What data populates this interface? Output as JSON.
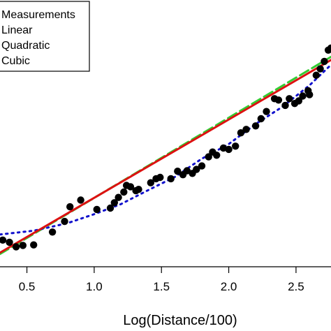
{
  "chart_data": {
    "type": "scatter",
    "title": "",
    "xlabel": "Log(Distance/100)",
    "ylabel": "",
    "x_ticks": [
      0.5,
      1.0,
      1.5,
      2.0,
      2.5
    ],
    "x_tick_labels": [
      "0.5",
      "1.0",
      "1.5",
      "2.0",
      "2.5"
    ],
    "xlim": [
      0.3,
      2.76
    ],
    "ylim": [
      0.0,
      1.0
    ],
    "grid": false,
    "legend_position": "top-left",
    "legend": [
      "Measurements",
      "Linear",
      "Quadratic",
      "Cubic"
    ],
    "series": [
      {
        "name": "Measurements",
        "style": "points",
        "color": "#000000",
        "points": [
          [
            0.32,
            0.1
          ],
          [
            0.37,
            0.092
          ],
          [
            0.42,
            0.075
          ],
          [
            0.47,
            0.08
          ],
          [
            0.55,
            0.082
          ],
          [
            0.69,
            0.13
          ],
          [
            0.78,
            0.17
          ],
          [
            0.82,
            0.225
          ],
          [
            0.9,
            0.25
          ],
          [
            1.02,
            0.215
          ],
          [
            1.12,
            0.22
          ],
          [
            1.15,
            0.24
          ],
          [
            1.18,
            0.26
          ],
          [
            1.22,
            0.28
          ],
          [
            1.24,
            0.305
          ],
          [
            1.27,
            0.3
          ],
          [
            1.31,
            0.285
          ],
          [
            1.33,
            0.29
          ],
          [
            1.42,
            0.315
          ],
          [
            1.46,
            0.33
          ],
          [
            1.49,
            0.335
          ],
          [
            1.57,
            0.33
          ],
          [
            1.62,
            0.358
          ],
          [
            1.66,
            0.345
          ],
          [
            1.69,
            0.36
          ],
          [
            1.73,
            0.35
          ],
          [
            1.76,
            0.365
          ],
          [
            1.8,
            0.378
          ],
          [
            1.85,
            0.412
          ],
          [
            1.88,
            0.43
          ],
          [
            1.91,
            0.418
          ],
          [
            1.96,
            0.445
          ],
          [
            2.0,
            0.44
          ],
          [
            2.05,
            0.452
          ],
          [
            2.09,
            0.502
          ],
          [
            2.13,
            0.515
          ],
          [
            2.2,
            0.528
          ],
          [
            2.24,
            0.555
          ],
          [
            2.28,
            0.582
          ],
          [
            2.34,
            0.63
          ],
          [
            2.37,
            0.625
          ],
          [
            2.42,
            0.605
          ],
          [
            2.45,
            0.63
          ],
          [
            2.49,
            0.612
          ],
          [
            2.52,
            0.622
          ],
          [
            2.55,
            0.64
          ],
          [
            2.59,
            0.66
          ],
          [
            2.6,
            0.645
          ],
          [
            2.65,
            0.718
          ],
          [
            2.68,
            0.742
          ],
          [
            2.71,
            0.77
          ],
          [
            2.74,
            0.812
          ],
          [
            2.76,
            0.82
          ]
        ]
      },
      {
        "name": "Linear",
        "style": "solid",
        "color": "#dd1111",
        "x": [
          0.3,
          2.76
        ],
        "y": [
          0.053,
          0.775
        ]
      },
      {
        "name": "Quadratic",
        "style": "dashed",
        "color": "#33cc33",
        "x": [
          0.3,
          2.76
        ],
        "y": [
          0.048,
          0.787
        ]
      },
      {
        "name": "Cubic",
        "style": "dotted",
        "color": "#1111cc",
        "x": [
          0.3,
          0.55,
          0.8,
          1.0,
          1.2,
          1.4,
          1.6,
          1.8,
          2.0,
          2.2,
          2.4,
          2.6,
          2.76
        ],
        "y": [
          0.121,
          0.135,
          0.163,
          0.197,
          0.235,
          0.287,
          0.337,
          0.405,
          0.46,
          0.535,
          0.6,
          0.68,
          0.757
        ]
      }
    ]
  }
}
